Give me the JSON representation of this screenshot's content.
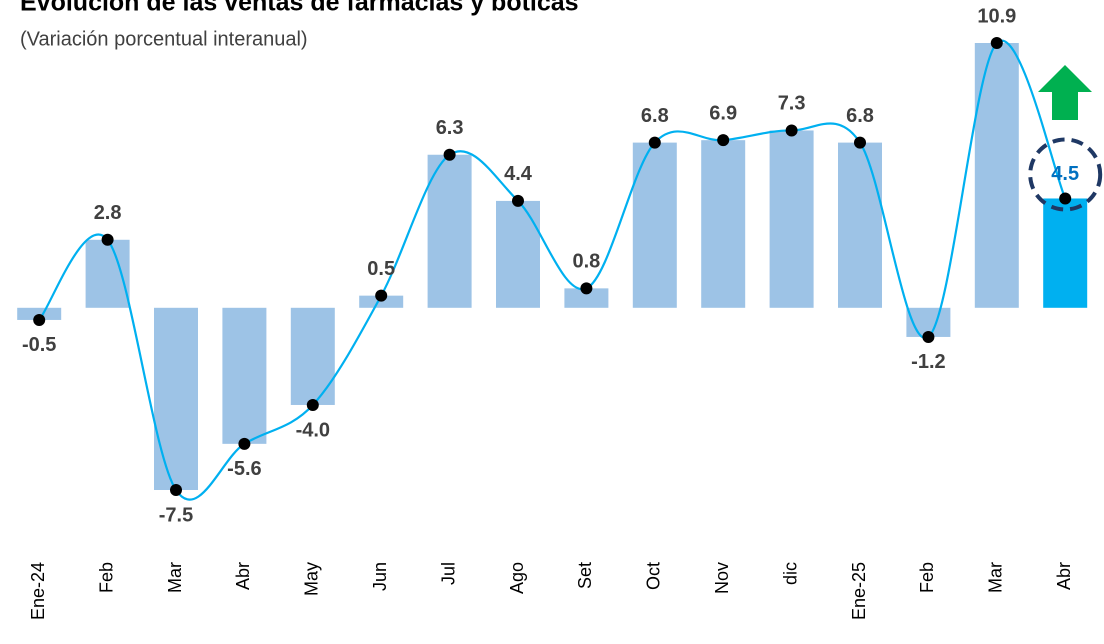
{
  "chart_data": {
    "type": "bar",
    "title": "Evolución de las ventas de farmacias y boticas",
    "subtitle": "(Variación porcentual interanual)",
    "categories": [
      "Ene-24",
      "Feb",
      "Mar",
      "Abr",
      "May",
      "Jun",
      "Jul",
      "Ago",
      "Set",
      "Oct",
      "Nov",
      "dic",
      "Ene-25",
      "Feb",
      "Mar",
      "Abr"
    ],
    "values": [
      -0.5,
      2.8,
      -7.5,
      -5.6,
      -4,
      0.5,
      6.3,
      4.4,
      0.8,
      6.8,
      6.9,
      7.3,
      6.8,
      -1.2,
      10.9,
      4.5
    ],
    "value_labels": [
      "-0.5",
      "2.8",
      "-7.5",
      "-5.6",
      "-4.0",
      "0.5",
      "6.3",
      "4.4",
      "0.8",
      "6.8",
      "6.9",
      "7.3",
      "6.8",
      "-1.2",
      "10.9",
      "4.5"
    ],
    "colors": [
      "#9dc3e6",
      "#9dc3e6",
      "#9dc3e6",
      "#9dc3e6",
      "#9dc3e6",
      "#9dc3e6",
      "#9dc3e6",
      "#9dc3e6",
      "#9dc3e6",
      "#9dc3e6",
      "#9dc3e6",
      "#9dc3e6",
      "#9dc3e6",
      "#9dc3e6",
      "#9dc3e6",
      "#00b0f0"
    ],
    "line_color": "#00b0f0",
    "highlight_label_color": "#0070c0"
  }
}
